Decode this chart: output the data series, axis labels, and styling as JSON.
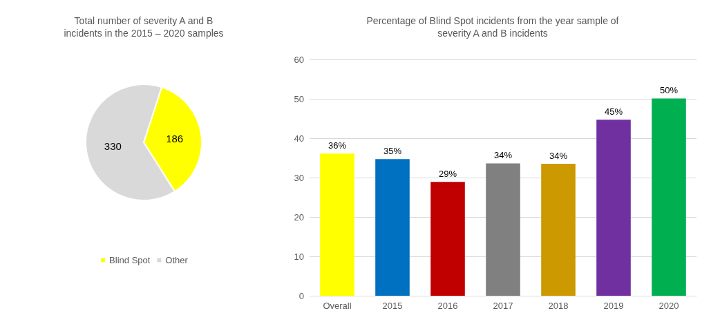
{
  "chart_data": [
    {
      "type": "pie",
      "title": "Total number of severity A and B\nincidents in the 2015 – 2020 samples",
      "categories": [
        "Blind Spot",
        "Other"
      ],
      "values": [
        186,
        330
      ],
      "colors": [
        "#ffff00",
        "#d9d9d9"
      ],
      "data_labels": true,
      "legend": "bottom"
    },
    {
      "type": "bar",
      "title": "Percentage of Blind Spot incidents from the year sample of\nseverity A and B incidents",
      "categories": [
        "Overall",
        "2015",
        "2016",
        "2017",
        "2018",
        "2019",
        "2020"
      ],
      "values": [
        36.1,
        34.7,
        28.9,
        33.6,
        33.5,
        44.7,
        50.1
      ],
      "colors": [
        "#ffff00",
        "#0070c0",
        "#c00000",
        "#808080",
        "#cc9900",
        "#7030a0",
        "#00b050"
      ],
      "value_labels": [
        "36%",
        "35%",
        "29%",
        "34%",
        "34%",
        "45%",
        "50%"
      ],
      "ylim": [
        0,
        60
      ],
      "yticks": [
        0,
        10,
        20,
        30,
        40,
        50,
        60
      ],
      "grid": "y",
      "legend": false
    }
  ]
}
